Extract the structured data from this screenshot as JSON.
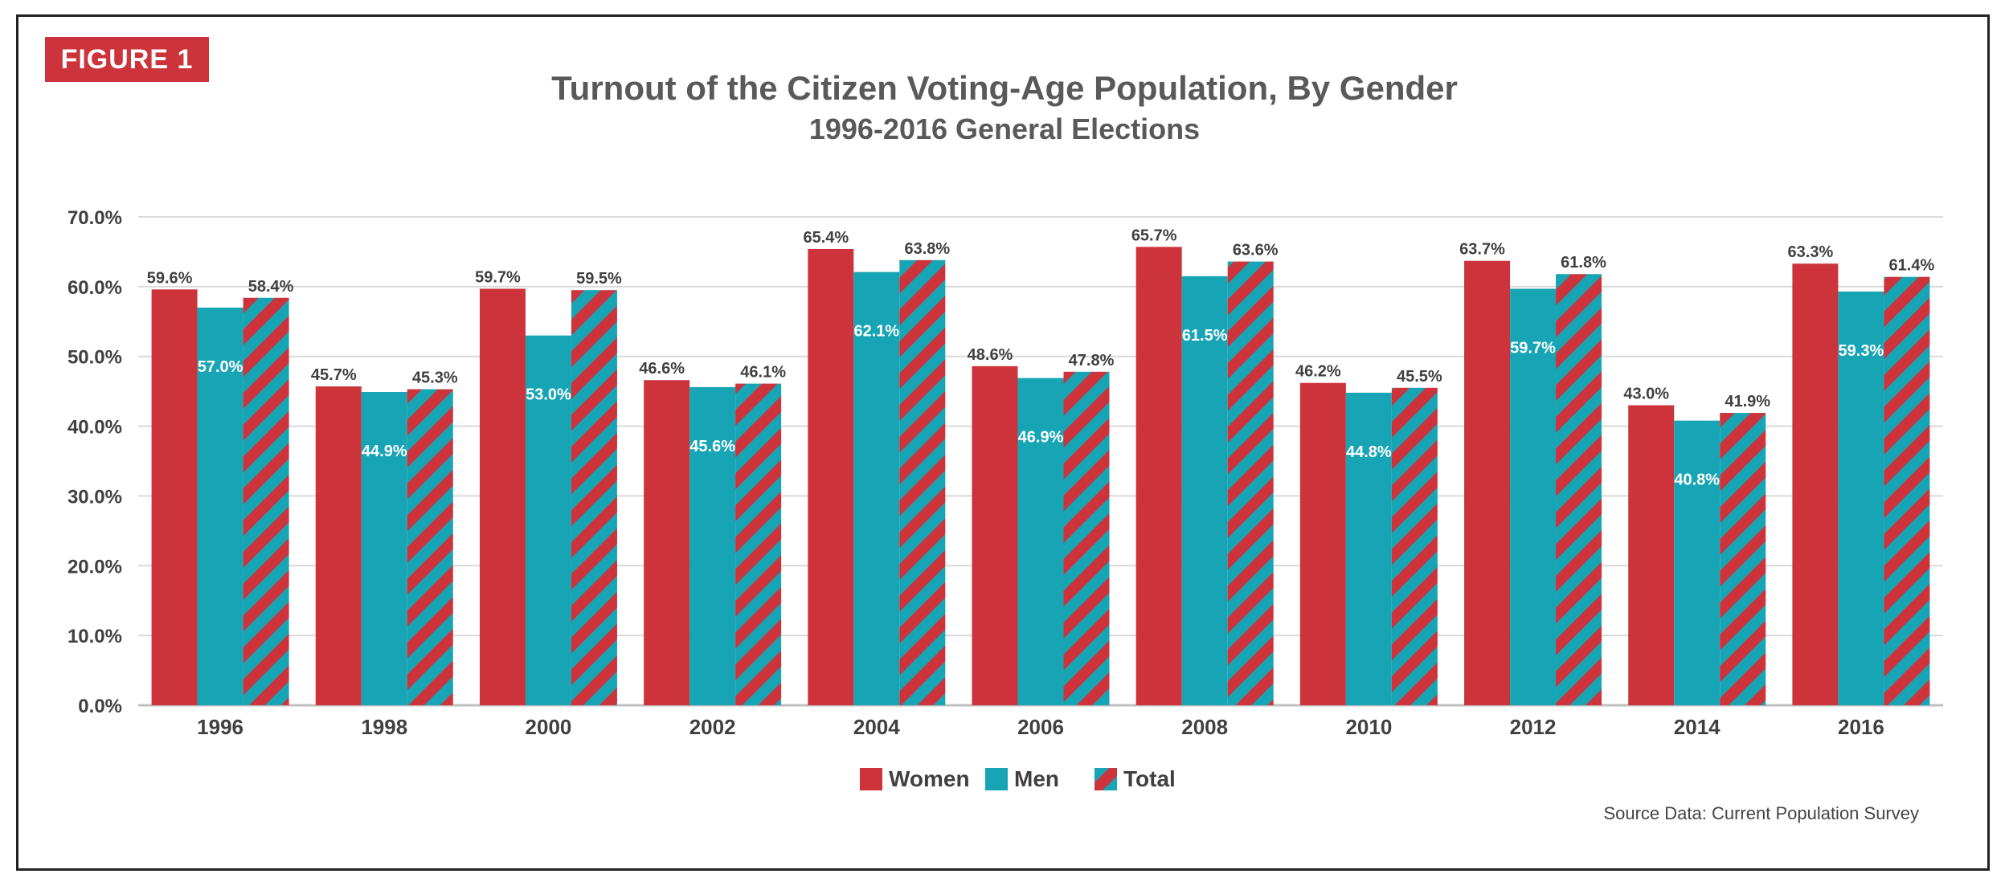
{
  "figure_badge": "FIGURE 1",
  "source_note": "Source Data: Current Population Survey",
  "colors": {
    "women": "#cc333b",
    "men": "#17a5b5",
    "total_stripe_a": "#cc333b",
    "total_stripe_b": "#17a5b5"
  },
  "chart_data": {
    "type": "bar",
    "title": "Turnout of the Citizen Voting-Age Population, By Gender",
    "subtitle": "1996-2016 General Elections",
    "xlabel": "",
    "ylabel": "",
    "ylim": [
      0,
      70
    ],
    "yticks": [
      "0.0%",
      "10.0%",
      "20.0%",
      "30.0%",
      "40.0%",
      "50.0%",
      "60.0%",
      "70.0%"
    ],
    "grid": true,
    "legend_position": "bottom-center",
    "categories": [
      "1996",
      "1998",
      "2000",
      "2002",
      "2004",
      "2006",
      "2008",
      "2010",
      "2012",
      "2014",
      "2016"
    ],
    "series": [
      {
        "name": "Women",
        "values": [
          59.6,
          45.7,
          59.7,
          46.6,
          65.4,
          48.6,
          65.7,
          46.2,
          63.7,
          43.0,
          63.3
        ],
        "labels": [
          "59.6%",
          "45.7%",
          "59.7%",
          "46.6%",
          "65.4%",
          "48.6%",
          "65.7%",
          "46.2%",
          "63.7%",
          "43.0%",
          "63.3%"
        ]
      },
      {
        "name": "Men",
        "values": [
          57.0,
          44.9,
          53.0,
          45.6,
          62.1,
          46.9,
          61.5,
          44.8,
          59.7,
          40.8,
          59.3
        ],
        "labels": [
          "57.0%",
          "44.9%",
          "53.0%",
          "45.6%",
          "62.1%",
          "46.9%",
          "61.5%",
          "44.8%",
          "59.7%",
          "40.8%",
          "59.3%"
        ]
      },
      {
        "name": "Total",
        "values": [
          58.4,
          45.3,
          59.5,
          46.1,
          63.8,
          47.8,
          63.6,
          45.5,
          61.8,
          41.9,
          61.4
        ],
        "labels": [
          "58.4%",
          "45.3%",
          "59.5%",
          "46.1%",
          "63.8%",
          "47.8%",
          "63.6%",
          "45.5%",
          "61.8%",
          "41.9%",
          "61.4%"
        ]
      }
    ]
  }
}
